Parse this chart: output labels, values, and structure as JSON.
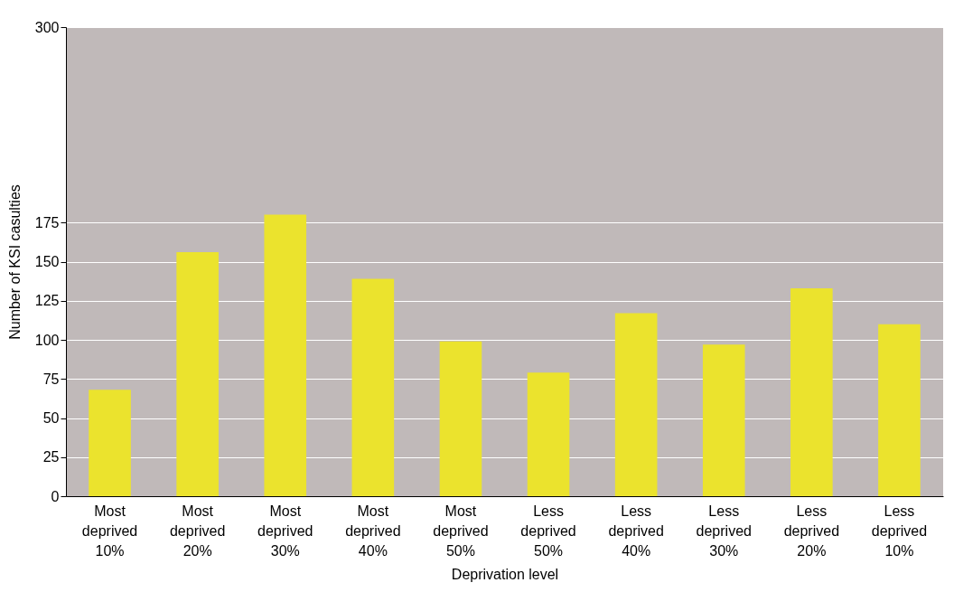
{
  "chart_data": {
    "type": "bar",
    "xlabel": "Deprivation level",
    "ylabel": "Number of KSI casulties",
    "categories": [
      "Most deprived 10%",
      "Most deprived 20%",
      "Most deprived 30%",
      "Most deprived 40%",
      "Most deprived 50%",
      "Less deprived 50%",
      "Less deprived 40%",
      "Less deprived 30%",
      "Less deprived 20%",
      "Less deprived 10%"
    ],
    "values": [
      68,
      156,
      180,
      139,
      99,
      79,
      117,
      97,
      133,
      110
    ],
    "color": "#ebe32d",
    "ylim": [
      0,
      300
    ],
    "yticks": [
      0,
      25,
      50,
      75,
      100,
      125,
      150,
      175,
      300
    ],
    "grid": "y"
  }
}
